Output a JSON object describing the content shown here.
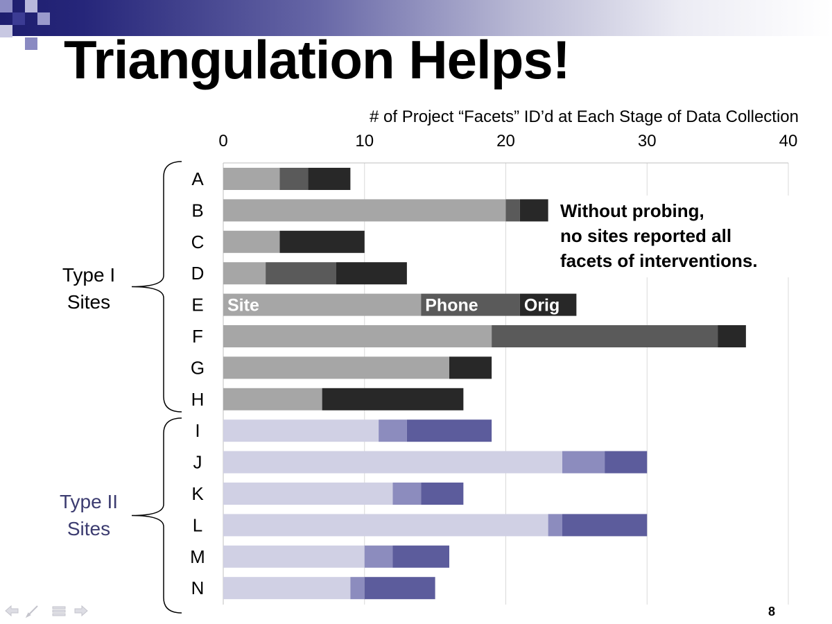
{
  "title": "Triangulation Helps!",
  "page_number": "8",
  "annotation": {
    "lines": [
      "Without probing,",
      "no sites reported all",
      "facets of interventions."
    ]
  },
  "groups": [
    {
      "label_lines": [
        "Type I",
        "Sites"
      ],
      "color": "#000000"
    },
    {
      "label_lines": [
        "Type II",
        "Sites"
      ],
      "color": "#3c3c70"
    }
  ],
  "chart_data": {
    "type": "bar",
    "orientation": "horizontal",
    "stacked": true,
    "title": "# of Project “Facets” ID’d at Each Stage of Data Collection",
    "xlim": [
      0,
      40
    ],
    "xticks": [
      0,
      10,
      20,
      30,
      40
    ],
    "xaxis_position": "top",
    "grid": true,
    "categories": [
      "A",
      "B",
      "C",
      "D",
      "E",
      "F",
      "G",
      "H",
      "I",
      "J",
      "K",
      "L",
      "M",
      "N"
    ],
    "series": [
      {
        "name": "Site",
        "values": [
          4,
          20,
          4,
          3,
          14,
          19,
          16,
          7,
          11,
          24,
          12,
          23,
          10,
          9
        ]
      },
      {
        "name": "Phone",
        "values": [
          2,
          1,
          0,
          5,
          7,
          16,
          0,
          0,
          2,
          3,
          2,
          1,
          2,
          1
        ]
      },
      {
        "name": "Orig",
        "values": [
          3,
          2,
          6,
          5,
          4,
          2,
          3,
          10,
          6,
          3,
          3,
          6,
          4,
          5
        ]
      }
    ],
    "colors": {
      "type1": [
        "#a6a6a6",
        "#5a5a5a",
        "#282828"
      ],
      "type2": [
        "#d0d0e4",
        "#8c8cbe",
        "#5c5c9c"
      ]
    },
    "type1_categories": [
      "A",
      "B",
      "C",
      "D",
      "E",
      "F",
      "G",
      "H"
    ],
    "type2_categories": [
      "I",
      "J",
      "K",
      "L",
      "M",
      "N"
    ],
    "labeled_category": "E"
  }
}
